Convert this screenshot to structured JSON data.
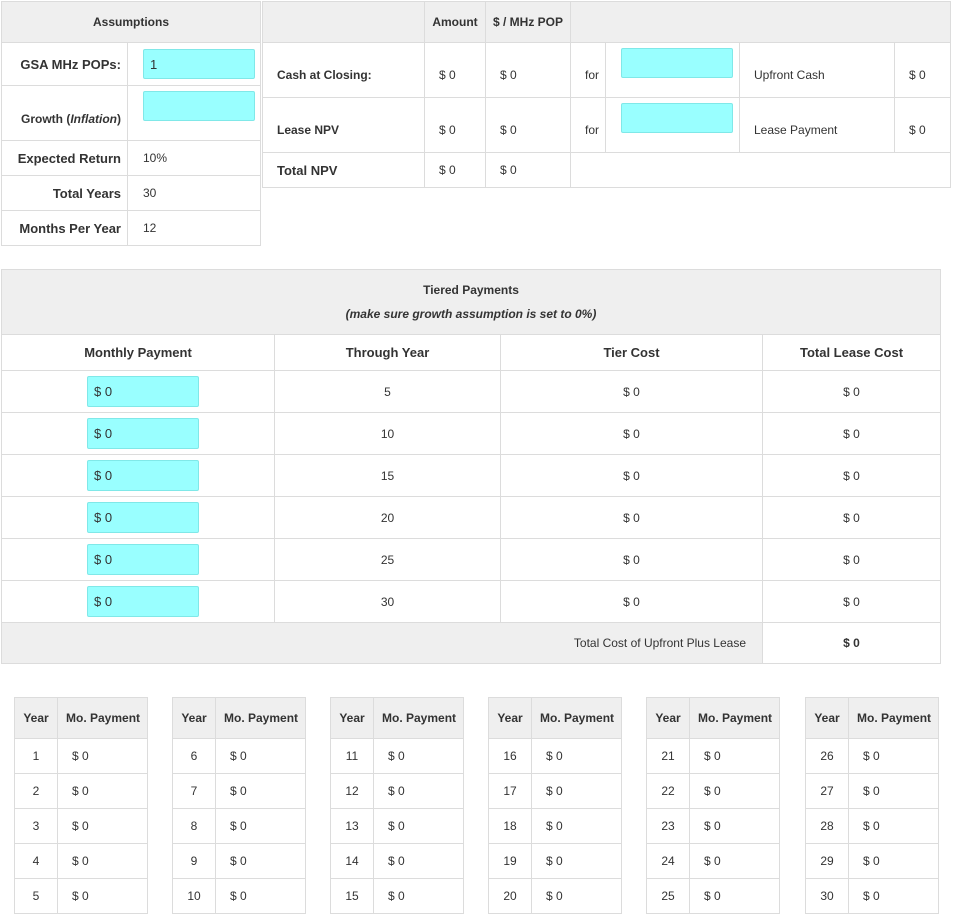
{
  "assumptions": {
    "header": "Assumptions",
    "gsa_label": "GSA MHz POPs:",
    "gsa_value": "1",
    "growth_label_pre": "Growth (",
    "growth_label_em": "Inflation",
    "growth_label_post": ")",
    "growth_value": "",
    "expected_return_label": "Expected Return",
    "expected_return_value": "10%",
    "total_years_label": "Total Years",
    "total_years_value": "30",
    "months_per_year_label": "Months Per Year",
    "months_per_year_value": "12"
  },
  "results": {
    "col_amount": "Amount",
    "col_per_pop": "$ / MHz POP",
    "cash": {
      "label": "Cash at Closing:",
      "amount": "$ 0",
      "per_pop": "$ 0",
      "for": "for",
      "input_value": "",
      "right_label": "Upfront Cash",
      "right_value": "$ 0"
    },
    "lease": {
      "label": "Lease NPV",
      "amount": "$ 0",
      "per_pop": "$ 0",
      "for": "for",
      "input_value": "",
      "right_label": "Lease Payment",
      "right_value": "$ 0"
    },
    "total": {
      "label": "Total NPV",
      "amount": "$ 0",
      "per_pop": "$ 0"
    }
  },
  "tiers": {
    "title": "Tiered Payments",
    "subtitle": "(make sure growth assumption is set to 0%)",
    "col_monthly": "Monthly Payment",
    "col_through": "Through Year",
    "col_tier_cost": "Tier Cost",
    "col_total_lease": "Total Lease Cost",
    "rows": [
      {
        "payment": "$ 0",
        "through": "5",
        "tier_cost": "$ 0",
        "total": "$ 0"
      },
      {
        "payment": "$ 0",
        "through": "10",
        "tier_cost": "$ 0",
        "total": "$ 0"
      },
      {
        "payment": "$ 0",
        "through": "15",
        "tier_cost": "$ 0",
        "total": "$ 0"
      },
      {
        "payment": "$ 0",
        "through": "20",
        "tier_cost": "$ 0",
        "total": "$ 0"
      },
      {
        "payment": "$ 0",
        "through": "25",
        "tier_cost": "$ 0",
        "total": "$ 0"
      },
      {
        "payment": "$ 0",
        "through": "30",
        "tier_cost": "$ 0",
        "total": "$ 0"
      }
    ],
    "total_label": "Total Cost of Upfront Plus Lease",
    "total_value": "$ 0"
  },
  "schedule": {
    "col_year": "Year",
    "col_payment": "Mo. Payment",
    "blocks": [
      [
        {
          "year": "1",
          "payment": "$ 0"
        },
        {
          "year": "2",
          "payment": "$ 0"
        },
        {
          "year": "3",
          "payment": "$ 0"
        },
        {
          "year": "4",
          "payment": "$ 0"
        },
        {
          "year": "5",
          "payment": "$ 0"
        }
      ],
      [
        {
          "year": "6",
          "payment": "$ 0"
        },
        {
          "year": "7",
          "payment": "$ 0"
        },
        {
          "year": "8",
          "payment": "$ 0"
        },
        {
          "year": "9",
          "payment": "$ 0"
        },
        {
          "year": "10",
          "payment": "$ 0"
        }
      ],
      [
        {
          "year": "11",
          "payment": "$ 0"
        },
        {
          "year": "12",
          "payment": "$ 0"
        },
        {
          "year": "13",
          "payment": "$ 0"
        },
        {
          "year": "14",
          "payment": "$ 0"
        },
        {
          "year": "15",
          "payment": "$ 0"
        }
      ],
      [
        {
          "year": "16",
          "payment": "$ 0"
        },
        {
          "year": "17",
          "payment": "$ 0"
        },
        {
          "year": "18",
          "payment": "$ 0"
        },
        {
          "year": "19",
          "payment": "$ 0"
        },
        {
          "year": "20",
          "payment": "$ 0"
        }
      ],
      [
        {
          "year": "21",
          "payment": "$ 0"
        },
        {
          "year": "22",
          "payment": "$ 0"
        },
        {
          "year": "23",
          "payment": "$ 0"
        },
        {
          "year": "24",
          "payment": "$ 0"
        },
        {
          "year": "25",
          "payment": "$ 0"
        }
      ],
      [
        {
          "year": "26",
          "payment": "$ 0"
        },
        {
          "year": "27",
          "payment": "$ 0"
        },
        {
          "year": "28",
          "payment": "$ 0"
        },
        {
          "year": "29",
          "payment": "$ 0"
        },
        {
          "year": "30",
          "payment": "$ 0"
        }
      ]
    ]
  },
  "colors": {
    "input_bg": "#99ffff",
    "header_bg": "#efefef",
    "border": "#dcdcdc"
  }
}
